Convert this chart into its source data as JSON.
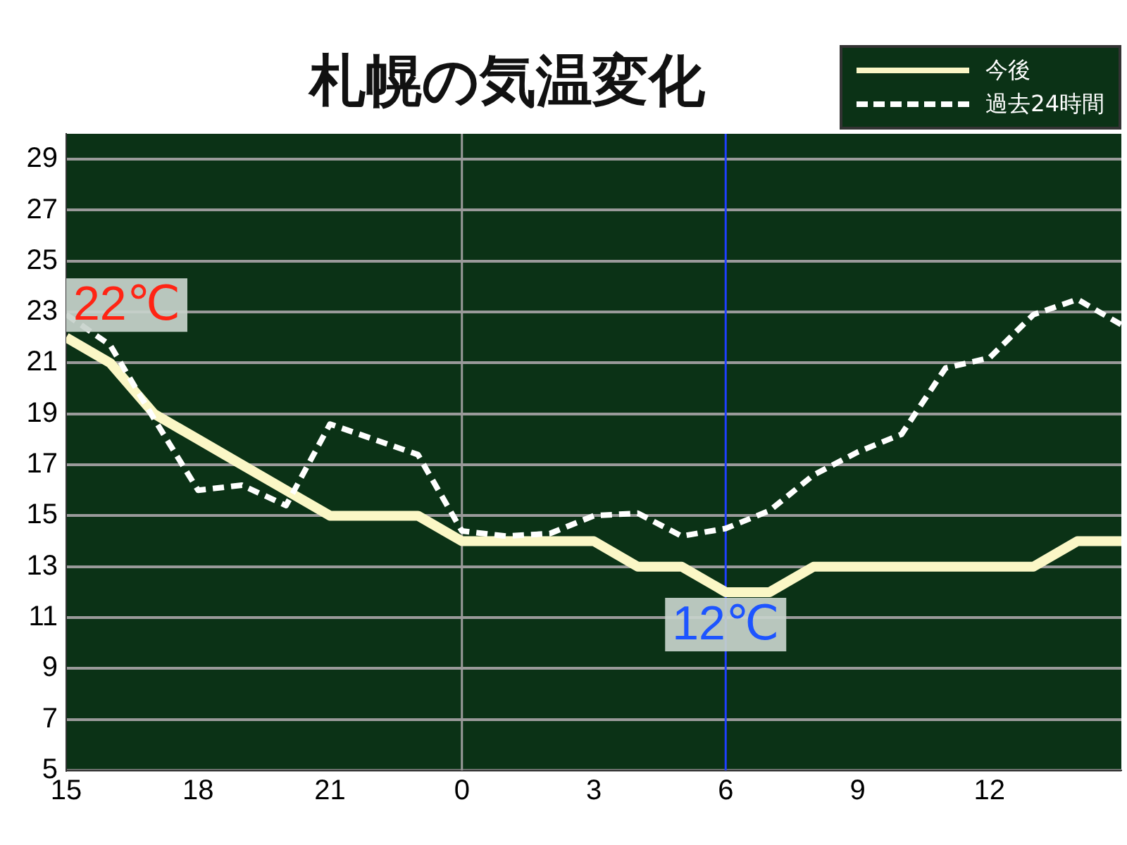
{
  "chart_data": {
    "type": "line",
    "title": "札幌の気温変化",
    "categories": [
      "15",
      null,
      null,
      "18",
      null,
      null,
      "21",
      null,
      null,
      "0",
      null,
      null,
      "3",
      null,
      null,
      "6",
      null,
      null,
      "9",
      null,
      null,
      "12",
      null,
      null,
      null
    ],
    "series": [
      {
        "name": "今後",
        "color": "#fbf7c6",
        "line_style": "solid",
        "values": [
          22,
          21,
          19,
          18,
          17,
          16,
          15,
          15,
          15,
          14,
          14,
          14,
          14,
          13,
          13,
          12,
          12,
          13,
          13,
          13,
          13,
          13,
          13,
          14,
          14
        ]
      },
      {
        "name": "過去24時間",
        "color": "#ffffff",
        "line_style": "dashed",
        "values": [
          22.9,
          21.7,
          18.8,
          16.0,
          16.2,
          15.4,
          18.6,
          18.0,
          17.4,
          14.4,
          14.2,
          14.3,
          15.0,
          15.1,
          14.2,
          14.5,
          15.2,
          16.6,
          17.5,
          18.2,
          20.8,
          21.2,
          22.9,
          23.5,
          22.5
        ]
      }
    ],
    "ylim": [
      5,
      30
    ],
    "yticks": [
      5,
      7,
      9,
      11,
      13,
      15,
      17,
      19,
      21,
      23,
      25,
      27,
      29
    ],
    "ref_lines": [
      {
        "axis": "x",
        "value": "0",
        "color": "#9a9a9a"
      },
      {
        "axis": "x",
        "value": "6",
        "color": "#1f3fff"
      }
    ],
    "annotations": [
      {
        "text": "22℃",
        "x": "15",
        "y": 22
      },
      {
        "text": "12℃",
        "x": "6",
        "y": 12
      }
    ],
    "grid": "y",
    "legend": "top right",
    "marker": "none"
  }
}
